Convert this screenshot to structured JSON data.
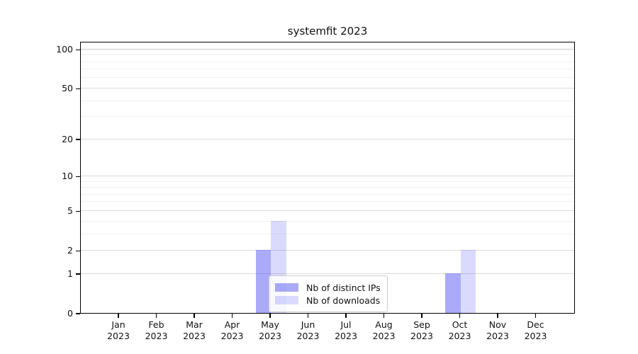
{
  "title": "systemfit 2023",
  "chart_data": {
    "type": "bar",
    "title": "systemfit 2023",
    "categories": [
      "Jan 2023",
      "Feb 2023",
      "Mar 2023",
      "Apr 2023",
      "May 2023",
      "Jun 2023",
      "Jul 2023",
      "Aug 2023",
      "Sep 2023",
      "Oct 2023",
      "Nov 2023",
      "Dec 2023"
    ],
    "series": [
      {
        "name": "Nb of distinct IPs",
        "values": [
          0,
          0,
          0,
          0,
          2,
          0,
          0,
          0,
          0,
          1,
          0,
          0
        ],
        "color": "rgba(70,70,240,0.46)"
      },
      {
        "name": "Nb of downloads",
        "values": [
          0,
          0,
          0,
          0,
          4,
          0,
          0,
          0,
          0,
          2,
          0,
          0
        ],
        "color": "rgba(70,70,240,0.20)"
      }
    ],
    "xlabel": "",
    "ylabel": "",
    "yscale": "log1p",
    "ylim": [
      0,
      115
    ],
    "yticks": [
      0,
      1,
      2,
      5,
      10,
      20,
      50,
      100
    ],
    "minor_gridlines": [
      3,
      4,
      6,
      7,
      8,
      9,
      30,
      40,
      60,
      70,
      80,
      90
    ],
    "grid": true,
    "legend_position": "lower-center"
  },
  "colors": {
    "bar_distinct_ips": "rgba(70,70,240,0.46)",
    "bar_downloads": "rgba(70,70,240,0.20)",
    "axis": "#000000",
    "gridline_major": "#d9d9d9",
    "gridline_minor": "#f1f1f1",
    "legend_border": "#cccccc",
    "background": "#ffffff"
  }
}
